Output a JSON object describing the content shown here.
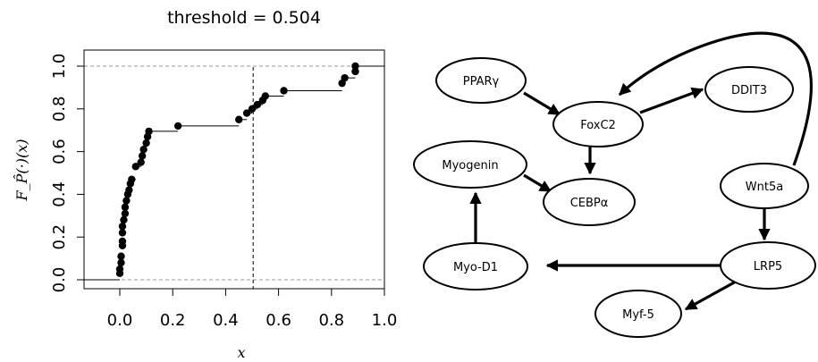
{
  "chart_data": [
    {
      "type": "step",
      "title": "threshold = 0.504",
      "xlabel": "x",
      "ylabel": "F_P̂(·)(x)",
      "xlim": [
        -0.1,
        1.0
      ],
      "ylim": [
        0.0,
        1.0
      ],
      "xticks": [
        "0.0",
        "0.2",
        "0.4",
        "0.6",
        "0.8",
        "1.0"
      ],
      "yticks": [
        "0.0",
        "0.2",
        "0.4",
        "0.6",
        "0.8",
        "1.0"
      ],
      "threshold": 0.504,
      "reference_lines_y": [
        0.0,
        1.0
      ],
      "points": [
        [
          0.0,
          0.03
        ],
        [
          0.0,
          0.05
        ],
        [
          0.005,
          0.08
        ],
        [
          0.005,
          0.11
        ],
        [
          0.01,
          0.16
        ],
        [
          0.01,
          0.18
        ],
        [
          0.01,
          0.22
        ],
        [
          0.01,
          0.25
        ],
        [
          0.015,
          0.28
        ],
        [
          0.02,
          0.31
        ],
        [
          0.02,
          0.34
        ],
        [
          0.025,
          0.37
        ],
        [
          0.03,
          0.4
        ],
        [
          0.035,
          0.42
        ],
        [
          0.04,
          0.45
        ],
        [
          0.045,
          0.47
        ],
        [
          0.06,
          0.53
        ],
        [
          0.08,
          0.55
        ],
        [
          0.085,
          0.58
        ],
        [
          0.09,
          0.61
        ],
        [
          0.1,
          0.64
        ],
        [
          0.105,
          0.67
        ],
        [
          0.11,
          0.695
        ],
        [
          0.22,
          0.72
        ],
        [
          0.45,
          0.75
        ],
        [
          0.48,
          0.78
        ],
        [
          0.5,
          0.8
        ],
        [
          0.52,
          0.82
        ],
        [
          0.54,
          0.84
        ],
        [
          0.55,
          0.86
        ],
        [
          0.62,
          0.885
        ],
        [
          0.84,
          0.92
        ],
        [
          0.85,
          0.945
        ],
        [
          0.89,
          0.975
        ],
        [
          0.89,
          1.0
        ]
      ]
    },
    {
      "type": "diagram",
      "nodes": [
        {
          "id": "pparg",
          "label": "PPARγ"
        },
        {
          "id": "foxc2",
          "label": "FoxC2"
        },
        {
          "id": "ddit3",
          "label": "DDIT3"
        },
        {
          "id": "myogenin",
          "label": "Myogenin"
        },
        {
          "id": "cebpa",
          "label": "CEBPα"
        },
        {
          "id": "wnt5a",
          "label": "Wnt5a"
        },
        {
          "id": "myod1",
          "label": "Myo-D1"
        },
        {
          "id": "lrp5",
          "label": "LRP5"
        },
        {
          "id": "myf5",
          "label": "Myf-5"
        }
      ],
      "edges": [
        {
          "from": "pparg",
          "to": "foxc2"
        },
        {
          "from": "foxc2",
          "to": "ddit3"
        },
        {
          "from": "foxc2",
          "to": "cebpa"
        },
        {
          "from": "myogenin",
          "to": "cebpa"
        },
        {
          "from": "wnt5a",
          "to": "foxc2"
        },
        {
          "from": "wnt5a",
          "to": "lrp5"
        },
        {
          "from": "lrp5",
          "to": "myod1"
        },
        {
          "from": "lrp5",
          "to": "myf5"
        },
        {
          "from": "myod1",
          "to": "myogenin"
        }
      ]
    }
  ]
}
